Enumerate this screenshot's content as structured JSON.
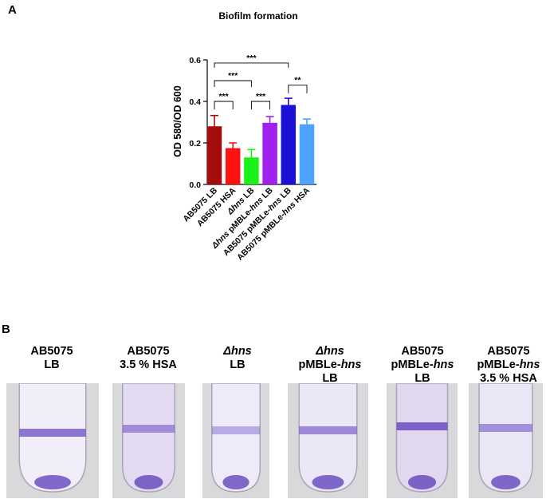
{
  "panel_a": {
    "letter": "A"
  },
  "panel_b": {
    "letter": "B",
    "tubes": [
      {
        "lines": [
          [
            "AB5075",
            ""
          ],
          [
            "LB",
            ""
          ]
        ]
      },
      {
        "lines": [
          [
            "AB5075",
            ""
          ],
          [
            "3.5 % HSA",
            ""
          ]
        ]
      },
      {
        "lines": [
          [
            "",
            "Δhns"
          ],
          [
            "LB",
            ""
          ]
        ]
      },
      {
        "lines": [
          [
            "",
            "Δhns"
          ],
          [
            "pMBLe-",
            "hns"
          ],
          [
            "LB",
            ""
          ]
        ]
      },
      {
        "lines": [
          [
            "AB5075",
            ""
          ],
          [
            "pMBLe-",
            "hns"
          ],
          [
            "LB",
            ""
          ]
        ]
      },
      {
        "lines": [
          [
            "AB5075",
            ""
          ],
          [
            "pMBLe-",
            "hns"
          ],
          [
            "3.5 % HSA",
            ""
          ]
        ]
      }
    ]
  },
  "chart_data": {
    "type": "bar",
    "title": "Biofilm formation",
    "ylabel": "OD 580/OD 600",
    "xlabel": "",
    "ylim": [
      0,
      0.6
    ],
    "yticks": [
      "0.0",
      "0.2",
      "0.4",
      "0.6"
    ],
    "categories": [
      {
        "parts": [
          [
            "AB5075 LB",
            false
          ]
        ]
      },
      {
        "parts": [
          [
            "AB5075 HSA",
            false
          ]
        ]
      },
      {
        "parts": [
          [
            "Δhns",
            true
          ],
          [
            " LB",
            false
          ]
        ]
      },
      {
        "parts": [
          [
            "Δhns",
            true
          ],
          [
            " pMBLe-",
            false
          ],
          [
            "hns",
            true
          ],
          [
            " LB",
            false
          ]
        ]
      },
      {
        "parts": [
          [
            "AB5075 pMBLe-",
            false
          ],
          [
            "hns",
            true
          ],
          [
            " LB",
            false
          ]
        ]
      },
      {
        "parts": [
          [
            "AB5075 pMBLe-",
            false
          ],
          [
            "hns",
            true
          ],
          [
            " HSA",
            false
          ]
        ]
      }
    ],
    "values": [
      0.28,
      0.175,
      0.13,
      0.297,
      0.383,
      0.29
    ],
    "errors": [
      0.052,
      0.025,
      0.038,
      0.03,
      0.032,
      0.025
    ],
    "colors": [
      "#a50d0d",
      "#ff1111",
      "#19f119",
      "#a020ee",
      "#1a10d6",
      "#4ea3ff"
    ],
    "significance": [
      {
        "from": 0,
        "to": 1,
        "label": "***"
      },
      {
        "from": 2,
        "to": 3,
        "label": "***"
      },
      {
        "from": 4,
        "to": 5,
        "label": "**"
      },
      {
        "from": 0,
        "to": 2,
        "label": "***"
      },
      {
        "from": 0,
        "to": 4,
        "label": "***"
      }
    ],
    "grid": false,
    "legend": "none"
  }
}
